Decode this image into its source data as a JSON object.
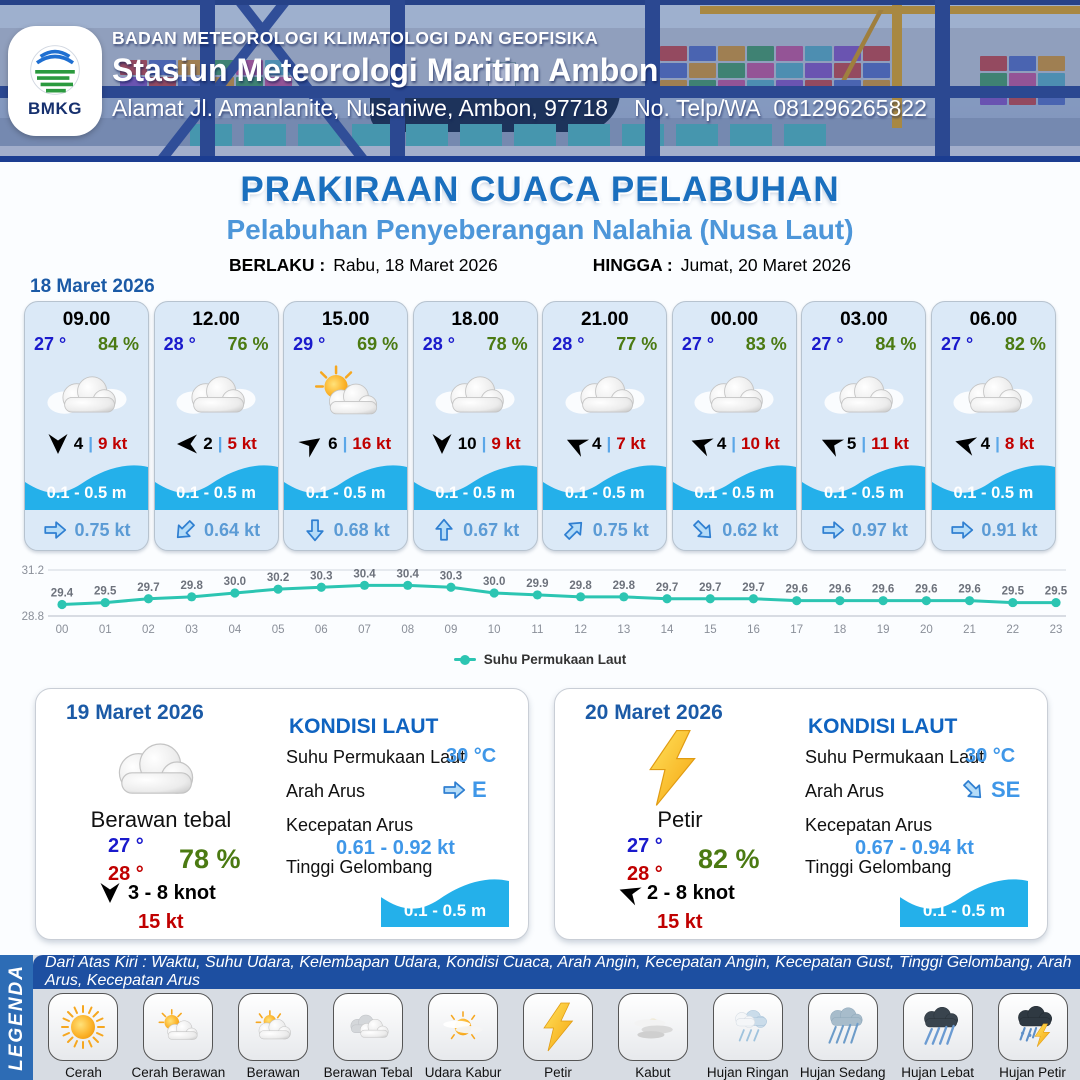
{
  "header": {
    "org": "BADAN METEOROLOGI KLIMATOLOGI DAN GEOFISIKA",
    "station": "Stasiun Meteorologi Maritim Ambon",
    "address": "Alamat Jl. Amanlanite, Nusaniwe, Ambon, 97718",
    "phone_label": "No. Telp/WA",
    "phone": "081296265822",
    "logo_text": "BMKG"
  },
  "title": {
    "main": "PRAKIRAAN CUACA PELABUHAN",
    "subtitle": "Pelabuhan Penyeberangan Nalahia (Nusa Laut)",
    "valid_from_label": "BERLAKU :",
    "valid_from": "Rabu, 18 Maret 2026",
    "valid_to_label": "HINGGA :",
    "valid_to": "Jumat, 20 Maret 2026"
  },
  "hourly": {
    "date": "18 Maret 2026",
    "cards": [
      {
        "time": "09.00",
        "temp": "27 °",
        "humidity": "84 %",
        "icon": "icon-cloud",
        "icon_name": "berawan",
        "wind_dir_deg": 90,
        "wind": "4",
        "divider": "|",
        "gust": "9 kt",
        "wave": "0.1 - 0.5 m",
        "current_dir_deg": 0,
        "current": "0.75 kt"
      },
      {
        "time": "12.00",
        "temp": "28 °",
        "humidity": "76 %",
        "icon": "icon-cloud",
        "icon_name": "berawan",
        "wind_dir_deg": 180,
        "wind": "2",
        "divider": "|",
        "gust": "5 kt",
        "wave": "0.1 - 0.5 m",
        "current_dir_deg": 135,
        "current": "0.64 kt"
      },
      {
        "time": "15.00",
        "temp": "29 °",
        "humidity": "69 %",
        "icon": "icon-suncloud",
        "icon_name": "cerah-berawan",
        "wind_dir_deg": 325,
        "wind": "6",
        "divider": "|",
        "gust": "16 kt",
        "wave": "0.1 - 0.5 m",
        "current_dir_deg": 90,
        "current": "0.68 kt"
      },
      {
        "time": "18.00",
        "temp": "28 °",
        "humidity": "78 %",
        "icon": "icon-cloud",
        "icon_name": "berawan",
        "wind_dir_deg": 90,
        "wind": "10",
        "divider": "|",
        "gust": "9 kt",
        "wave": "0.1 - 0.5 m",
        "current_dir_deg": 270,
        "current": "0.67 kt"
      },
      {
        "time": "21.00",
        "temp": "28 °",
        "humidity": "77 %",
        "icon": "icon-cloud",
        "icon_name": "berawan",
        "wind_dir_deg": 205,
        "wind": "4",
        "divider": "|",
        "gust": "7 kt",
        "wave": "0.1 - 0.5 m",
        "current_dir_deg": 315,
        "current": "0.75 kt"
      },
      {
        "time": "00.00",
        "temp": "27 °",
        "humidity": "83 %",
        "icon": "icon-cloud",
        "icon_name": "berawan",
        "wind_dir_deg": 200,
        "wind": "4",
        "divider": "|",
        "gust": "10 kt",
        "wave": "0.1 - 0.5 m",
        "current_dir_deg": 45,
        "current": "0.62 kt"
      },
      {
        "time": "03.00",
        "temp": "27 °",
        "humidity": "84 %",
        "icon": "icon-cloud",
        "icon_name": "berawan",
        "wind_dir_deg": 205,
        "wind": "5",
        "divider": "|",
        "gust": "11 kt",
        "wave": "0.1 - 0.5 m",
        "current_dir_deg": 0,
        "current": "0.97 kt"
      },
      {
        "time": "06.00",
        "temp": "27 °",
        "humidity": "82 %",
        "icon": "icon-cloud",
        "icon_name": "berawan",
        "wind_dir_deg": 195,
        "wind": "4",
        "divider": "|",
        "gust": "8 kt",
        "wave": "0.1 - 0.5 m",
        "current_dir_deg": 0,
        "current": "0.91 kt"
      }
    ]
  },
  "chart_data": {
    "type": "line",
    "title": "",
    "series_name": "Suhu Permukaan Laut",
    "x": [
      "00",
      "01",
      "02",
      "03",
      "04",
      "05",
      "06",
      "07",
      "08",
      "09",
      "10",
      "11",
      "12",
      "13",
      "14",
      "15",
      "16",
      "17",
      "18",
      "19",
      "20",
      "21",
      "22",
      "23"
    ],
    "values": [
      29.4,
      29.5,
      29.7,
      29.8,
      30.0,
      30.2,
      30.3,
      30.4,
      30.4,
      30.3,
      30.0,
      29.9,
      29.8,
      29.8,
      29.7,
      29.7,
      29.7,
      29.6,
      29.6,
      29.6,
      29.6,
      29.6,
      29.5,
      29.5
    ],
    "ylim": [
      28.8,
      31.2
    ],
    "line_color": "#2cc5b2",
    "grid": "top-and-bottom-lines-only",
    "legend_position": "bottom-center"
  },
  "daily": [
    {
      "date": "19 Maret 2026",
      "condition": "Berawan tebal",
      "icon": "icon-cloud",
      "temp_min": "27 °",
      "temp_max": "28 °",
      "humidity": "78 %",
      "wind_dir_deg": 90,
      "wind": "3 - 8 knot",
      "gust": "15 kt",
      "sea": {
        "title": "KONDISI LAUT",
        "sst_label": "Suhu Permukaan Laut",
        "sst": "30 °C",
        "dir_label": "Arah Arus",
        "dir": "E",
        "dir_deg": 0,
        "speed_label": "Kecepatan Arus",
        "speed": "0.61 - 0.92 kt",
        "wave_label": "Tinggi Gelombang",
        "wave": "0.1 - 0.5 m"
      }
    },
    {
      "date": "20 Maret 2026",
      "condition": "Petir",
      "icon": "icon-lightning",
      "temp_min": "27 °",
      "temp_max": "28 °",
      "humidity": "82 %",
      "wind_dir_deg": 200,
      "wind": "2 - 8 knot",
      "gust": "15 kt",
      "sea": {
        "title": "KONDISI LAUT",
        "sst_label": "Suhu Permukaan Laut",
        "sst": "30 °C",
        "dir_label": "Arah Arus",
        "dir": "SE",
        "dir_deg": 45,
        "speed_label": "Kecepatan Arus",
        "speed": "0.67 - 0.94 kt",
        "wave_label": "Tinggi Gelombang",
        "wave": "0.1 - 0.5 m"
      }
    }
  ],
  "legend": {
    "label": "LEGENDA",
    "description": "Dari Atas Kiri : Waktu, Suhu Udara, Kelembapan Udara, Kondisi Cuaca, Arah Angin, Kecepatan Angin, Kecepatan Gust, Tinggi Gelombang, Arah Arus, Kecepatan Arus",
    "items": [
      {
        "label": "Cerah",
        "icon": "icon-sun"
      },
      {
        "label": "Cerah Berawan",
        "icon": "icon-suncloud"
      },
      {
        "label": "Berawan",
        "icon": "icon-cloudsun"
      },
      {
        "label": "Berawan Tebal",
        "icon": "icon-thickcloud"
      },
      {
        "label": "Udara Kabur",
        "icon": "icon-haze"
      },
      {
        "label": "Petir",
        "icon": "icon-lightning"
      },
      {
        "label": "Kabut",
        "icon": "icon-fog"
      },
      {
        "label": "Hujan Ringan",
        "icon": "icon-rain-light"
      },
      {
        "label": "Hujan Sedang",
        "icon": "icon-rain-medium"
      },
      {
        "label": "Hujan Lebat",
        "icon": "icon-rain-heavy"
      },
      {
        "label": "Hujan Petir",
        "icon": "icon-storm"
      }
    ]
  },
  "colors": {
    "title_blue": "#1a6fbe",
    "subtitle_blue": "#4d96d9",
    "temp_blue": "#1a1acc",
    "temp_red": "#c00000",
    "humidity_green": "#4b7a12",
    "wave_cyan": "#24b0ea",
    "current_blue": "#5b9bd5",
    "chart_teal": "#2cc5b2",
    "legend_bar_navy": "#1d4fa1",
    "legend_side_blue": "#2d6cb5"
  }
}
